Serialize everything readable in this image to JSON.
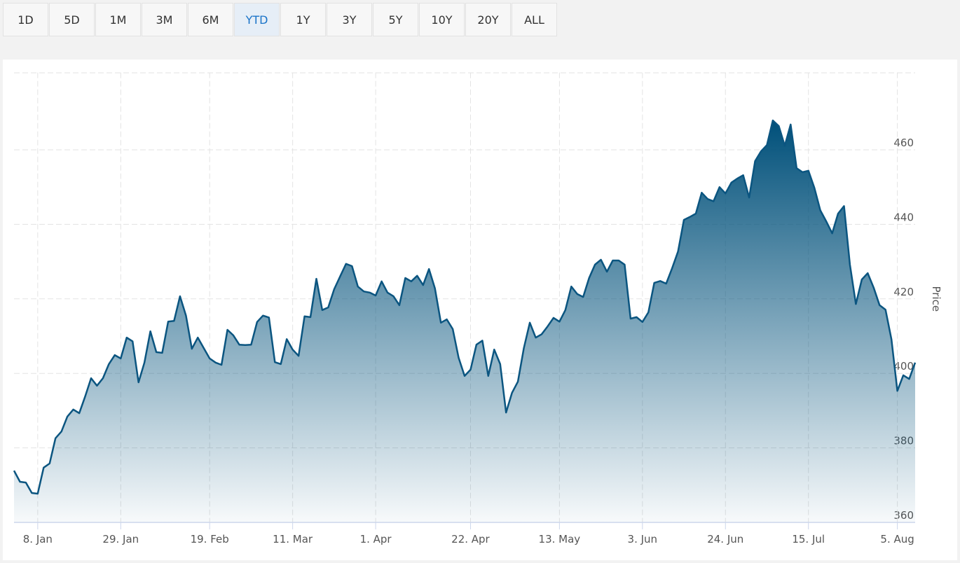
{
  "range_buttons": [
    {
      "label": "1D",
      "active": false
    },
    {
      "label": "5D",
      "active": false
    },
    {
      "label": "1M",
      "active": false
    },
    {
      "label": "3M",
      "active": false
    },
    {
      "label": "6M",
      "active": false
    },
    {
      "label": "YTD",
      "active": true
    },
    {
      "label": "1Y",
      "active": false
    },
    {
      "label": "3Y",
      "active": false
    },
    {
      "label": "5Y",
      "active": false
    },
    {
      "label": "10Y",
      "active": false
    },
    {
      "label": "20Y",
      "active": false
    },
    {
      "label": "ALL",
      "active": false
    }
  ],
  "chart_data": {
    "type": "area",
    "y_label": "Price",
    "color": "#0b5580",
    "values": [
      373.9,
      370.9,
      370.7,
      367.9,
      367.7,
      374.7,
      375.8,
      382.6,
      384.4,
      388.4,
      390.3,
      389.3,
      393.8,
      398.7,
      396.7,
      398.7,
      402.5,
      404.9,
      404.0,
      409.6,
      408.6,
      397.6,
      402.9,
      411.3,
      405.7,
      405.5,
      413.9,
      414.1,
      420.7,
      415.5,
      406.6,
      409.6,
      406.8,
      404.0,
      402.9,
      402.3,
      411.7,
      410.2,
      407.7,
      407.6,
      407.7,
      413.8,
      415.5,
      415.0,
      403.0,
      402.5,
      409.2,
      406.4,
      404.7,
      415.3,
      415.1,
      425.4,
      417.0,
      417.7,
      422.6,
      426.0,
      429.4,
      428.8,
      423.3,
      422.0,
      421.7,
      420.9,
      424.7,
      421.7,
      420.7,
      418.3,
      425.6,
      424.7,
      426.2,
      423.7,
      428.0,
      422.8,
      413.6,
      414.5,
      411.9,
      404.2,
      399.3,
      401.0,
      407.7,
      408.8,
      399.3,
      406.4,
      402.5,
      389.5,
      394.8,
      397.8,
      406.8,
      413.6,
      409.6,
      410.5,
      412.6,
      414.9,
      413.9,
      417.0,
      423.3,
      421.3,
      420.5,
      425.6,
      429.2,
      430.5,
      427.3,
      430.3,
      430.3,
      429.2,
      414.7,
      415.1,
      413.8,
      416.4,
      424.3,
      424.8,
      424.1,
      428.2,
      432.7,
      441.2,
      442.0,
      442.9,
      448.5,
      446.8,
      446.2,
      450.0,
      448.3,
      451.2,
      452.3,
      453.2,
      447.2,
      457.0,
      459.6,
      461.3,
      467.9,
      466.4,
      461.1,
      466.8,
      455.1,
      454.0,
      454.4,
      449.8,
      443.8,
      440.8,
      437.6,
      442.9,
      444.9,
      429.2,
      418.6,
      425.2,
      426.9,
      423.0,
      418.3,
      417.1,
      409.1,
      395.3,
      399.5,
      398.5,
      402.9
    ],
    "xlim": [
      0,
      152
    ],
    "xticks": [
      {
        "value": 4,
        "label": "8. Jan"
      },
      {
        "value": 18,
        "label": "29. Jan"
      },
      {
        "value": 33,
        "label": "19. Feb"
      },
      {
        "value": 47,
        "label": "11. Mar"
      },
      {
        "value": 61,
        "label": "1. Apr"
      },
      {
        "value": 77,
        "label": "22. Apr"
      },
      {
        "value": 92,
        "label": "13. May"
      },
      {
        "value": 106,
        "label": "3. Jun"
      },
      {
        "value": 120,
        "label": "24. Jun"
      },
      {
        "value": 134,
        "label": "15. Jul"
      },
      {
        "value": 149,
        "label": "5. Aug"
      }
    ],
    "ylim": [
      360,
      480
    ],
    "yticks": [
      360,
      380,
      400,
      420,
      440,
      460
    ],
    "grid": true
  }
}
